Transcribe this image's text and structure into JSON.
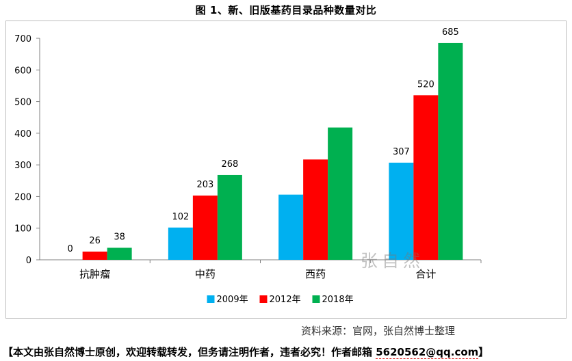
{
  "chart_data": {
    "type": "bar",
    "title": "图 1、新、旧版基药目录品种数量对比",
    "categories": [
      "抗肿瘤",
      "中药",
      "西药",
      "合计"
    ],
    "series": [
      {
        "name": "2009年",
        "color": "#00b0f0",
        "values": [
          0,
          102,
          206,
          307
        ]
      },
      {
        "name": "2012年",
        "color": "#ff0000",
        "values": [
          26,
          203,
          317,
          520
        ]
      },
      {
        "name": "2018年",
        "color": "#00b050",
        "values": [
          38,
          268,
          418,
          685
        ]
      }
    ],
    "data_labels": [
      [
        "0",
        "102",
        "",
        "307"
      ],
      [
        "26",
        "203",
        "",
        "520"
      ],
      [
        "38",
        "268",
        "",
        "685"
      ]
    ],
    "ylim": [
      0,
      700
    ],
    "yticks": [
      0,
      100,
      200,
      300,
      400,
      500,
      600,
      700
    ],
    "xlabel": "",
    "ylabel": "",
    "legend": "bottom-center",
    "grid": false
  },
  "source": "资料来源：官网，张自然博士整理",
  "notice": {
    "text": "【本文由张自然博士原创，欢迎转载转发，但务请注明作者，违者必究！作者邮箱 ",
    "email": "5620562@qq.com",
    "end": "】"
  },
  "watermark": "张自然"
}
